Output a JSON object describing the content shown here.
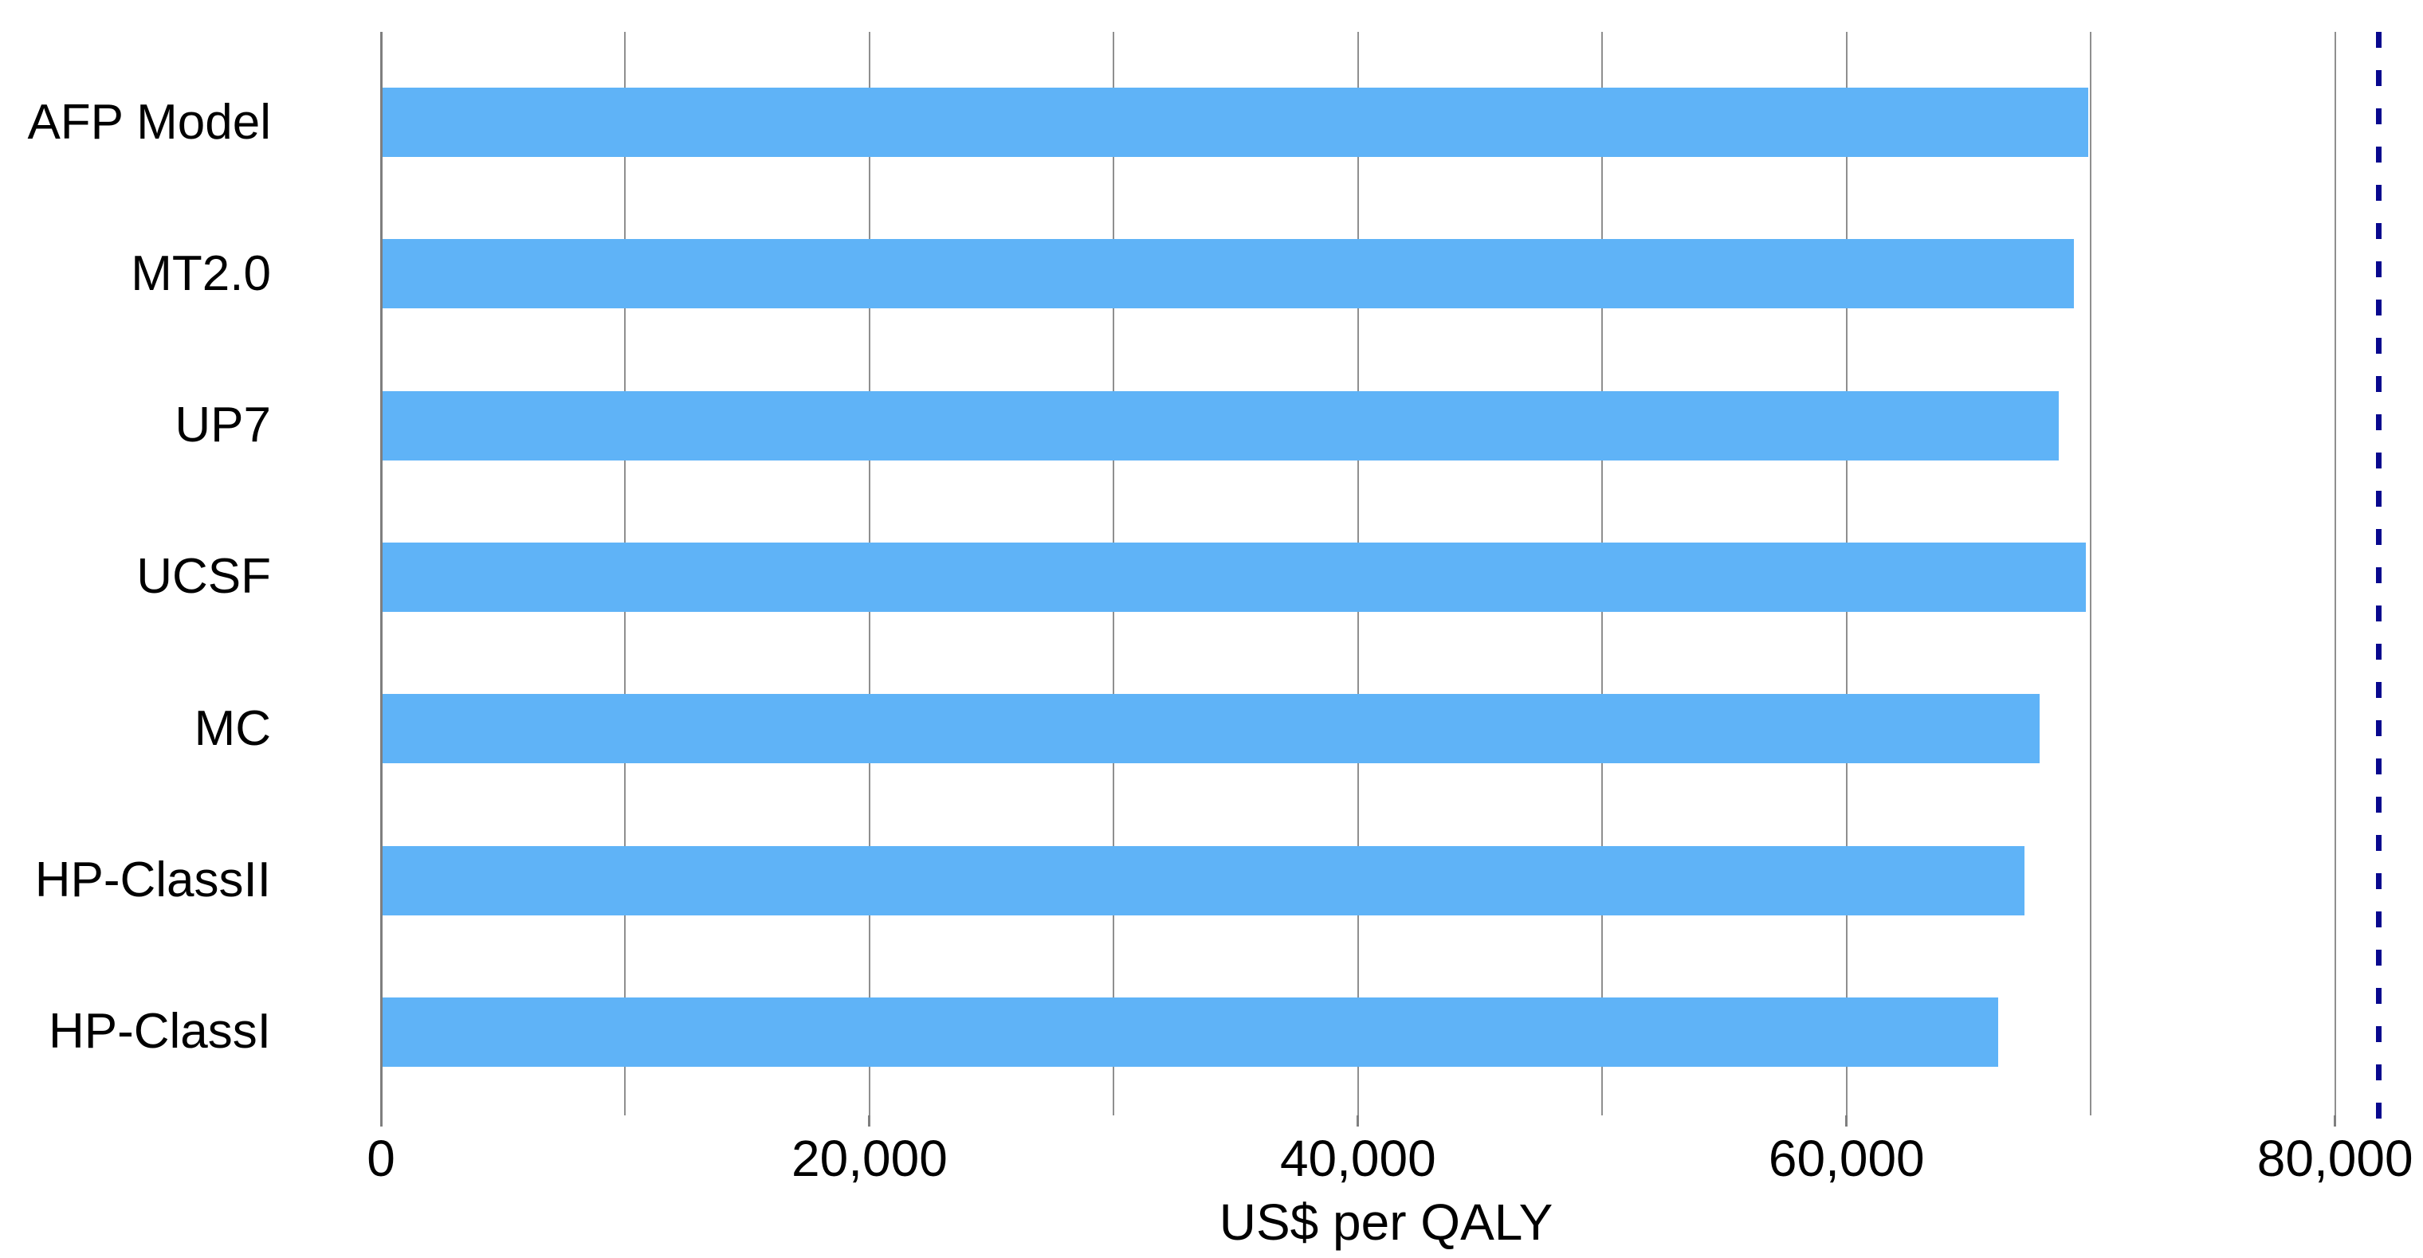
{
  "chart_data": {
    "type": "bar",
    "orientation": "horizontal",
    "title": "",
    "xlabel": "US$ per QALY",
    "ylabel": "",
    "categories": [
      "AFP Model",
      "MT2.0",
      "UP7",
      "UCSF",
      "MC",
      "HP-ClassII",
      "HP-ClassI"
    ],
    "values": [
      69900,
      69300,
      68700,
      69800,
      67900,
      67300,
      66200
    ],
    "xlim": [
      0,
      83600
    ],
    "xticks": [
      {
        "value": 0,
        "label": "0"
      },
      {
        "value": 20000,
        "label": "20,000"
      },
      {
        "value": 40000,
        "label": "40,000"
      },
      {
        "value": 60000,
        "label": "60,000"
      },
      {
        "value": 80000,
        "label": "80,000"
      }
    ],
    "gridline_interval": 10000,
    "grid": true,
    "legend": false,
    "bar_color": "#5FB3F7",
    "gridline_color": "#8F8F8F",
    "axis_line_color": "#7F7F7F",
    "text_color": "#000000",
    "reference_line": {
      "value": 81800,
      "style": "dashed",
      "color": "#08088E"
    }
  }
}
